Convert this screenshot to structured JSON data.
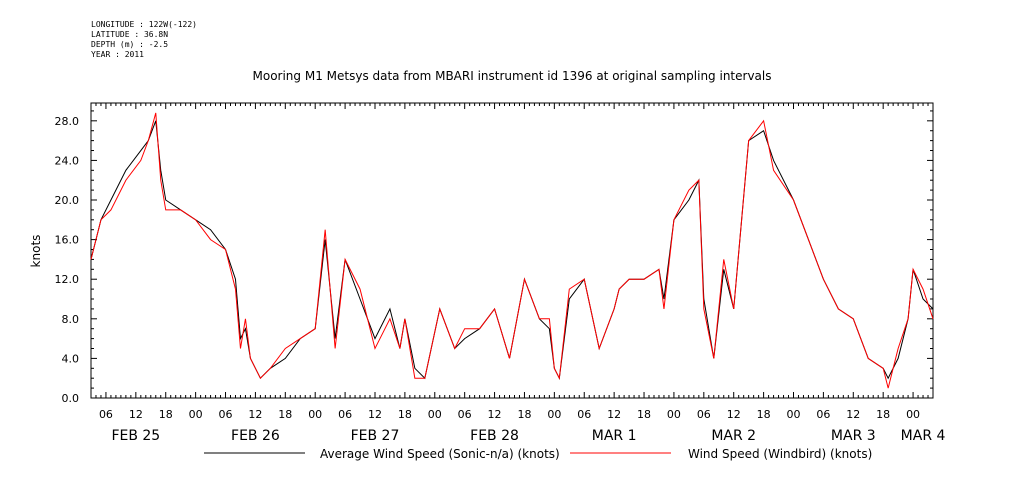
{
  "header": {
    "meta_lines": [
      "LONGITUDE : 122W(-122)",
      "LATITUDE : 36.8N",
      "DEPTH (m) : -2.5",
      "YEAR : 2011"
    ]
  },
  "chart_data": {
    "type": "line",
    "title": "Mooring M1 Metsys data from MBARI instrument id 1396 at original sampling intervals",
    "xlabel": "",
    "ylabel": "knots",
    "ylim": [
      0,
      29.8
    ],
    "xlim_hours": [
      3,
      172
    ],
    "y_ticks": [
      "0.0",
      "4.0",
      "8.0",
      "12.0",
      "16.0",
      "20.0",
      "24.0",
      "28.0"
    ],
    "x_hour_ticks": [
      "06",
      "12",
      "18",
      "00",
      "06",
      "12",
      "18",
      "00",
      "06",
      "12",
      "18",
      "00",
      "06",
      "12",
      "18",
      "00",
      "06",
      "12",
      "18",
      "00",
      "06",
      "12",
      "18",
      "00",
      "06",
      "12",
      "18",
      "00"
    ],
    "x_day_labels": [
      "FEB 25",
      "FEB 26",
      "FEB 27",
      "FEB 28",
      "MAR 1",
      "MAR 2",
      "MAR 3",
      "MAR 4"
    ],
    "grid": false,
    "legend_position": "bottom",
    "series": [
      {
        "name": "Average Wind Speed (Sonic-n/a) (knots)",
        "color": "#000000",
        "x_hours": [
          3,
          5,
          7,
          10,
          13,
          14.5,
          16,
          17,
          18,
          21,
          24,
          27,
          30,
          32,
          33,
          34,
          35,
          36,
          37,
          39,
          42,
          45,
          48,
          50,
          52,
          54,
          57,
          60,
          63,
          65,
          66,
          68,
          70,
          73,
          76,
          78,
          81,
          84,
          87,
          90,
          93,
          95,
          96,
          97,
          99,
          102,
          105,
          108,
          109,
          111,
          114,
          117,
          118,
          120,
          123,
          125,
          126,
          128,
          130,
          132,
          135,
          138,
          140,
          144,
          147,
          150,
          153,
          156,
          159,
          162,
          163,
          165,
          167,
          168,
          170,
          172
        ],
        "values": [
          14,
          18,
          20,
          23,
          25,
          26,
          28,
          23,
          20,
          19,
          18,
          17,
          15,
          12,
          6,
          7,
          4,
          3,
          2,
          3,
          4,
          6,
          7,
          16,
          6,
          14,
          10,
          6,
          9,
          5,
          8,
          3,
          2,
          9,
          5,
          6,
          7,
          9,
          4,
          12,
          8,
          7,
          3,
          2,
          10,
          12,
          5,
          9,
          11,
          12,
          12,
          13,
          10,
          18,
          20,
          22,
          10,
          4,
          13,
          9,
          26,
          27,
          24,
          20,
          16,
          12,
          9,
          8,
          4,
          3,
          2,
          4,
          8,
          13,
          10,
          9
        ]
      },
      {
        "name": "Wind Speed (Windbird) (knots)",
        "color": "#ff0000",
        "x_hours": [
          3,
          5,
          7,
          10,
          13,
          14.5,
          16,
          17,
          18,
          21,
          24,
          27,
          30,
          32,
          33,
          34,
          35,
          36,
          37,
          39,
          42,
          45,
          48,
          50,
          52,
          54,
          57,
          60,
          63,
          65,
          66,
          68,
          70,
          73,
          76,
          78,
          81,
          84,
          87,
          90,
          93,
          95,
          96,
          97,
          99,
          102,
          105,
          108,
          109,
          111,
          114,
          117,
          118,
          120,
          123,
          125,
          126,
          128,
          130,
          132,
          135,
          138,
          140,
          144,
          147,
          150,
          153,
          156,
          159,
          162,
          163,
          165,
          167,
          168,
          170,
          172
        ],
        "values": [
          14,
          18,
          19,
          22,
          24,
          26,
          28.8,
          22,
          19,
          19,
          18,
          16,
          15,
          11,
          5,
          8,
          4,
          3,
          2,
          3,
          5,
          6,
          7,
          17,
          5,
          14,
          11,
          5,
          8,
          5,
          8,
          2,
          2,
          9,
          5,
          7,
          7,
          9,
          4,
          12,
          8,
          8,
          3,
          2,
          11,
          12,
          5,
          9,
          11,
          12,
          12,
          13,
          9,
          18,
          21,
          22,
          9,
          4,
          14,
          9,
          26,
          28,
          23,
          20,
          16,
          12,
          9,
          8,
          4,
          3,
          1,
          5,
          8,
          13,
          11,
          8
        ]
      }
    ]
  }
}
